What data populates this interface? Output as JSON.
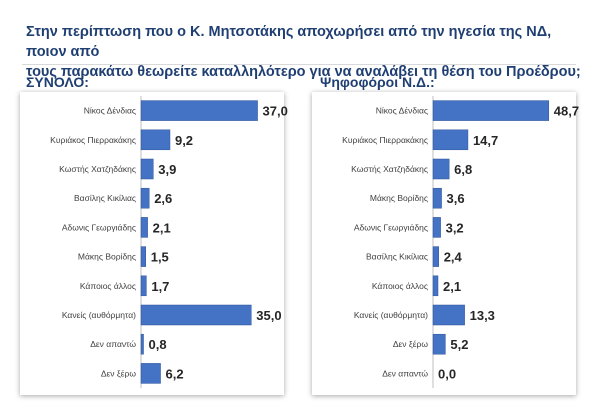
{
  "question": {
    "line1": "Στην περίπτωση που ο Κ. Μητσοτάκης αποχωρήσει από την ηγεσία της ΝΔ, ποιον από",
    "line2": "τους παρακάτω θεωρείτε καταλληλότερο για να αναλάβει τη θέση του Προέδρου;"
  },
  "colors": {
    "bar": "#4472c4",
    "bar_dark": "#2f5597",
    "text": "#1f3f73"
  },
  "chart_data": [
    {
      "type": "bar",
      "orientation": "horizontal",
      "title": "ΣΥΝΟΛΟ:",
      "xlim": [
        0,
        40
      ],
      "categories": [
        "Νίκος Δένδιας",
        "Κυριάκος Πιερρακάκης",
        "Κωστής Χατζηδάκης",
        "Βασίλης Κικίλιας",
        "Αδωνις Γεωργιάδης",
        "Μάκης Βορίδης",
        "Κάποιος άλλος",
        "Κανείς (αυθόρμητα)",
        "Δεν απαντώ",
        "Δεν ξέρω"
      ],
      "values": [
        37.0,
        9.2,
        3.9,
        2.6,
        2.1,
        1.5,
        1.7,
        35.0,
        0.8,
        6.2
      ],
      "labels": [
        "37,0",
        "9,2",
        "3,9",
        "2,6",
        "2,1",
        "1,5",
        "1,7",
        "35,0",
        "0,8",
        "6,2"
      ]
    },
    {
      "type": "bar",
      "orientation": "horizontal",
      "title": "Ψηφοφόροι Ν.Δ.:",
      "xlim": [
        0,
        53
      ],
      "categories": [
        "Νίκος Δένδιας",
        "Κυριάκος Πιερρακάκης",
        "Κωστής Χατζηδάκης",
        "Μάκης Βορίδης",
        "Αδωνις Γεωργιάδης",
        "Βασίλης Κικίλιας",
        "Κάποιος άλλος",
        "Κανείς (αυθόρμητα)",
        "Δεν ξέρω",
        "Δεν απαντώ"
      ],
      "values": [
        48.7,
        14.7,
        6.8,
        3.6,
        3.2,
        2.4,
        2.1,
        13.3,
        5.2,
        0.0
      ],
      "labels": [
        "48,7",
        "14,7",
        "6,8",
        "3,6",
        "3,2",
        "2,4",
        "2,1",
        "13,3",
        "5,2",
        "0,0"
      ]
    }
  ]
}
